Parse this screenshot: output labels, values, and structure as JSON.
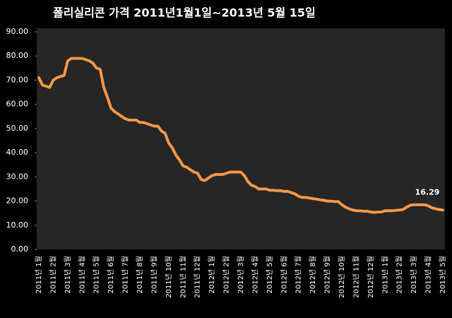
{
  "chart_data": {
    "type": "line",
    "title": "폴리실리콘 가격    2011년1월1일~2013년 5월 15일",
    "categories": [
      "2011년 1월",
      null,
      null,
      null,
      "2011년 2월",
      null,
      null,
      null,
      "2011년 3월",
      null,
      null,
      null,
      "2011년 4월",
      null,
      null,
      null,
      "2011년 5월",
      null,
      null,
      null,
      "2011년 6월",
      null,
      null,
      null,
      "2011년 7월",
      null,
      null,
      null,
      "2011년 8월",
      null,
      null,
      null,
      "2011년 9월",
      null,
      null,
      null,
      "2011년 10월",
      null,
      null,
      null,
      "2011년 11월",
      null,
      null,
      null,
      "2011년 12월",
      null,
      null,
      null,
      "2012년 1월",
      null,
      null,
      null,
      "2012년 2월",
      null,
      null,
      null,
      "2012년 3월",
      null,
      null,
      null,
      "2012년 4월",
      null,
      null,
      null,
      "2012년 5월",
      null,
      null,
      null,
      "2012년 6월",
      null,
      null,
      null,
      "2012년 7월",
      null,
      null,
      null,
      "2012년 8월",
      null,
      null,
      null,
      "2012년 9월",
      null,
      null,
      null,
      "2012년 10월",
      null,
      null,
      null,
      "2012년 11월",
      null,
      null,
      null,
      "2012년 12월",
      null,
      null,
      null,
      "2013년 1월",
      null,
      null,
      null,
      "2013년 2월",
      null,
      null,
      null,
      "2013년 3월",
      null,
      null,
      null,
      "2013년 4월",
      null,
      null,
      null,
      "2013년 5월"
    ],
    "values": [
      71,
      68,
      67.5,
      67,
      70,
      71,
      71.5,
      72,
      78,
      79,
      79,
      79,
      79,
      78.5,
      78,
      77,
      75,
      74.5,
      67,
      63,
      58.5,
      57,
      56,
      55,
      54,
      53.5,
      53.5,
      53.5,
      52.5,
      52.5,
      52,
      51.5,
      51,
      51,
      49,
      48,
      44,
      42,
      39,
      37,
      34.5,
      34,
      33,
      32,
      31.5,
      29,
      28.5,
      29.5,
      30.5,
      31,
      31,
      31,
      31.5,
      32,
      32,
      32,
      32,
      30.5,
      28,
      26.5,
      26,
      25,
      25,
      25,
      24.5,
      24.5,
      24.3,
      24.3,
      24,
      24,
      23.5,
      23,
      22,
      21.5,
      21.5,
      21.3,
      21,
      20.8,
      20.5,
      20.3,
      20,
      20,
      19.8,
      19.8,
      18.5,
      17.5,
      16.8,
      16.3,
      16,
      16,
      15.8,
      15.8,
      15.5,
      15.3,
      15.5,
      15.5,
      16,
      16,
      16,
      16.2,
      16.3,
      16.5,
      17.5,
      18.3,
      18.5,
      18.5,
      18.5,
      18.5,
      18,
      17.2,
      16.8,
      16.5,
      16.29
    ],
    "color": "#f79646",
    "label_last_point": true,
    "ylim": [
      0,
      90
    ],
    "yticks": [
      {
        "value": 0,
        "label": "0.00"
      },
      {
        "value": 10,
        "label": "10.00"
      },
      {
        "value": 20,
        "label": "20.00"
      },
      {
        "value": 30,
        "label": "30.00"
      },
      {
        "value": 40,
        "label": "40.00"
      },
      {
        "value": 50,
        "label": "50.00"
      },
      {
        "value": 60,
        "label": "60.00"
      },
      {
        "value": 70,
        "label": "70.00"
      },
      {
        "value": 80,
        "label": "80.00"
      },
      {
        "value": 90,
        "label": "90.00"
      }
    ],
    "grid": false
  }
}
